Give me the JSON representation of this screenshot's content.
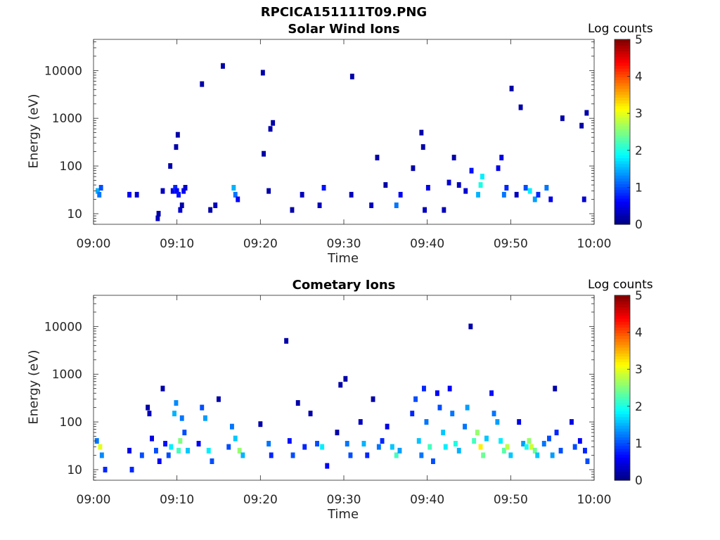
{
  "figure": {
    "title": "RPCICA151111T09.PNG"
  },
  "chart_data": [
    {
      "type": "heatmap",
      "title": "Solar Wind Ions",
      "xlabel": "Time",
      "ylabel": "Energy (eV)",
      "x_tick_labels": [
        "09:00",
        "09:10",
        "09:20",
        "09:30",
        "09:40",
        "09:50",
        "10:00"
      ],
      "x_range_minutes": [
        0,
        60
      ],
      "y_scale": "log",
      "y_range_eV": [
        6,
        45000
      ],
      "y_tick_values": [
        10,
        100,
        1000,
        10000
      ],
      "y_tick_labels": [
        "10",
        "100",
        "1000",
        "10000"
      ],
      "colorbar": {
        "label": "Log counts",
        "range": [
          0,
          5
        ],
        "tick_labels": [
          "0",
          "1",
          "2",
          "3",
          "4",
          "5"
        ],
        "colormap": "jet"
      },
      "cells": [
        [
          0.5,
          30,
          1.5
        ],
        [
          0.7,
          25,
          1.2
        ],
        [
          0.9,
          35,
          1.0
        ],
        [
          4.3,
          25,
          0.6
        ],
        [
          5.2,
          25,
          0.4
        ],
        [
          7.7,
          8,
          0.3
        ],
        [
          7.8,
          10,
          0.2
        ],
        [
          8.3,
          30,
          0.3
        ],
        [
          9.2,
          100,
          0.2
        ],
        [
          9.5,
          30,
          0.5
        ],
        [
          9.8,
          35,
          0.8
        ],
        [
          10.0,
          30,
          0.6
        ],
        [
          10.2,
          25,
          0.7
        ],
        [
          10.4,
          12,
          0.4
        ],
        [
          10.6,
          15,
          0.2
        ],
        [
          10.8,
          30,
          0.6
        ],
        [
          11.0,
          35,
          0.4
        ],
        [
          10.1,
          450,
          0.2
        ],
        [
          9.9,
          250,
          0.2
        ],
        [
          13.0,
          5200,
          0.2
        ],
        [
          14.0,
          12,
          0.2
        ],
        [
          14.6,
          15,
          0.3
        ],
        [
          15.5,
          12500,
          0.2
        ],
        [
          16.8,
          35,
          1.5
        ],
        [
          17.0,
          25,
          1.2
        ],
        [
          17.3,
          20,
          0.6
        ],
        [
          20.3,
          9000,
          0.2
        ],
        [
          20.4,
          180,
          0.2
        ],
        [
          21.0,
          30,
          0.2
        ],
        [
          21.2,
          600,
          0.2
        ],
        [
          21.5,
          800,
          0.2
        ],
        [
          23.8,
          12,
          0.2
        ],
        [
          25.0,
          25,
          0.3
        ],
        [
          27.1,
          15,
          0.3
        ],
        [
          27.6,
          35,
          0.7
        ],
        [
          31.0,
          7500,
          0.2
        ],
        [
          30.9,
          25,
          0.3
        ],
        [
          33.3,
          15,
          0.3
        ],
        [
          34.0,
          150,
          0.2
        ],
        [
          35.0,
          40,
          0.2
        ],
        [
          36.3,
          15,
          1.2
        ],
        [
          36.8,
          25,
          0.6
        ],
        [
          38.3,
          90,
          0.2
        ],
        [
          39.3,
          500,
          0.2
        ],
        [
          39.5,
          250,
          0.2
        ],
        [
          39.7,
          12,
          0.3
        ],
        [
          40.1,
          35,
          0.5
        ],
        [
          42.0,
          12,
          0.3
        ],
        [
          42.6,
          45,
          0.4
        ],
        [
          43.2,
          150,
          0.2
        ],
        [
          43.8,
          40,
          0.3
        ],
        [
          44.6,
          30,
          0.4
        ],
        [
          45.3,
          80,
          0.7
        ],
        [
          46.1,
          25,
          1.5
        ],
        [
          46.4,
          40,
          2.0
        ],
        [
          46.6,
          60,
          1.8
        ],
        [
          48.5,
          90,
          0.5
        ],
        [
          48.9,
          150,
          0.5
        ],
        [
          49.2,
          25,
          1.2
        ],
        [
          49.5,
          35,
          0.8
        ],
        [
          50.1,
          4200,
          0.2
        ],
        [
          50.7,
          25,
          0.3
        ],
        [
          51.2,
          1700,
          0.2
        ],
        [
          51.8,
          35,
          1.0
        ],
        [
          52.3,
          30,
          1.8
        ],
        [
          52.9,
          20,
          1.4
        ],
        [
          53.3,
          25,
          0.8
        ],
        [
          54.3,
          35,
          1.2
        ],
        [
          54.8,
          20,
          0.5
        ],
        [
          56.2,
          1000,
          0.2
        ],
        [
          58.5,
          700,
          0.2
        ],
        [
          58.8,
          20,
          0.4
        ],
        [
          59.1,
          1300,
          0.2
        ]
      ]
    },
    {
      "type": "heatmap",
      "title": "Cometary Ions",
      "xlabel": "Time",
      "ylabel": "Energy (eV)",
      "x_tick_labels": [
        "09:00",
        "09:10",
        "09:20",
        "09:30",
        "09:40",
        "09:50",
        "10:00"
      ],
      "x_range_minutes": [
        0,
        60
      ],
      "y_scale": "log",
      "y_range_eV": [
        6,
        45000
      ],
      "y_tick_values": [
        10,
        100,
        1000,
        10000
      ],
      "y_tick_labels": [
        "10",
        "100",
        "1000",
        "10000"
      ],
      "colorbar": {
        "label": "Log counts",
        "range": [
          0,
          5
        ],
        "tick_labels": [
          "0",
          "1",
          "2",
          "3",
          "4",
          "5"
        ],
        "colormap": "jet"
      },
      "cells": [
        [
          0.4,
          40,
          1.2
        ],
        [
          0.8,
          30,
          3.0
        ],
        [
          1.0,
          20,
          1.3
        ],
        [
          1.4,
          10,
          0.8
        ],
        [
          4.3,
          25,
          0.5
        ],
        [
          4.6,
          10,
          0.8
        ],
        [
          5.8,
          20,
          1.0
        ],
        [
          6.5,
          200,
          0.2
        ],
        [
          6.7,
          150,
          0.3
        ],
        [
          7.0,
          45,
          0.5
        ],
        [
          7.5,
          25,
          1.0
        ],
        [
          7.9,
          15,
          0.6
        ],
        [
          8.3,
          500,
          0.2
        ],
        [
          8.6,
          35,
          0.7
        ],
        [
          9.0,
          20,
          1.0
        ],
        [
          9.3,
          30,
          1.8
        ],
        [
          9.7,
          150,
          1.5
        ],
        [
          9.9,
          250,
          1.3
        ],
        [
          10.2,
          25,
          2.2
        ],
        [
          10.4,
          40,
          2.5
        ],
        [
          10.6,
          120,
          1.2
        ],
        [
          10.9,
          60,
          1.0
        ],
        [
          11.3,
          25,
          1.6
        ],
        [
          12.6,
          35,
          0.6
        ],
        [
          13.0,
          200,
          1.0
        ],
        [
          13.4,
          120,
          1.4
        ],
        [
          13.8,
          25,
          1.8
        ],
        [
          14.2,
          15,
          1.0
        ],
        [
          15.0,
          300,
          0.2
        ],
        [
          16.2,
          30,
          1.0
        ],
        [
          16.6,
          80,
          1.2
        ],
        [
          17.0,
          45,
          1.6
        ],
        [
          17.5,
          25,
          2.6
        ],
        [
          17.9,
          20,
          1.5
        ],
        [
          20.0,
          90,
          0.2
        ],
        [
          21.0,
          35,
          1.2
        ],
        [
          21.3,
          20,
          0.8
        ],
        [
          23.1,
          5000,
          0.2
        ],
        [
          23.5,
          40,
          0.7
        ],
        [
          23.9,
          20,
          1.0
        ],
        [
          24.5,
          250,
          0.2
        ],
        [
          25.3,
          30,
          0.8
        ],
        [
          26.0,
          150,
          0.2
        ],
        [
          26.8,
          35,
          1.0
        ],
        [
          27.4,
          30,
          1.8
        ],
        [
          28.0,
          12,
          0.6
        ],
        [
          29.2,
          60,
          0.2
        ],
        [
          29.6,
          600,
          0.2
        ],
        [
          30.2,
          800,
          0.2
        ],
        [
          30.4,
          35,
          1.2
        ],
        [
          30.8,
          20,
          1.0
        ],
        [
          32.0,
          100,
          0.3
        ],
        [
          32.4,
          35,
          1.5
        ],
        [
          32.8,
          20,
          0.8
        ],
        [
          33.5,
          300,
          0.2
        ],
        [
          34.2,
          30,
          1.2
        ],
        [
          34.6,
          40,
          0.8
        ],
        [
          35.2,
          80,
          0.5
        ],
        [
          35.8,
          30,
          1.6
        ],
        [
          36.3,
          20,
          2.2
        ],
        [
          36.7,
          25,
          1.4
        ],
        [
          38.2,
          150,
          0.8
        ],
        [
          38.6,
          300,
          1.0
        ],
        [
          39.0,
          40,
          1.6
        ],
        [
          39.3,
          20,
          1.2
        ],
        [
          39.6,
          500,
          0.8
        ],
        [
          39.9,
          100,
          1.2
        ],
        [
          40.3,
          30,
          2.2
        ],
        [
          40.7,
          15,
          1.0
        ],
        [
          41.2,
          400,
          0.6
        ],
        [
          41.5,
          200,
          1.0
        ],
        [
          41.9,
          60,
          1.6
        ],
        [
          42.2,
          30,
          1.8
        ],
        [
          42.7,
          500,
          0.6
        ],
        [
          43.0,
          150,
          1.2
        ],
        [
          43.4,
          35,
          2.0
        ],
        [
          43.8,
          25,
          1.5
        ],
        [
          44.5,
          80,
          1.2
        ],
        [
          44.8,
          200,
          1.4
        ],
        [
          45.2,
          10000,
          0.2
        ],
        [
          45.6,
          40,
          2.2
        ],
        [
          46.0,
          60,
          2.6
        ],
        [
          46.4,
          30,
          3.2
        ],
        [
          46.7,
          20,
          2.4
        ],
        [
          47.1,
          45,
          1.6
        ],
        [
          47.7,
          400,
          0.7
        ],
        [
          48.0,
          150,
          1.2
        ],
        [
          48.4,
          100,
          1.4
        ],
        [
          48.8,
          40,
          1.8
        ],
        [
          49.2,
          25,
          2.3
        ],
        [
          49.6,
          30,
          2.8
        ],
        [
          50.0,
          20,
          1.6
        ],
        [
          51.0,
          100,
          0.5
        ],
        [
          51.5,
          35,
          1.4
        ],
        [
          51.9,
          30,
          2.0
        ],
        [
          52.2,
          40,
          2.6
        ],
        [
          52.5,
          30,
          2.9
        ],
        [
          52.9,
          25,
          2.4
        ],
        [
          53.2,
          20,
          1.6
        ],
        [
          54.0,
          35,
          1.2
        ],
        [
          54.6,
          45,
          1.0
        ],
        [
          55.0,
          20,
          1.4
        ],
        [
          55.3,
          500,
          0.2
        ],
        [
          55.5,
          60,
          0.8
        ],
        [
          56.0,
          25,
          1.0
        ],
        [
          57.3,
          100,
          0.5
        ],
        [
          57.7,
          30,
          1.0
        ],
        [
          58.3,
          40,
          0.6
        ],
        [
          58.9,
          25,
          0.8
        ],
        [
          59.2,
          15,
          1.0
        ]
      ]
    }
  ]
}
